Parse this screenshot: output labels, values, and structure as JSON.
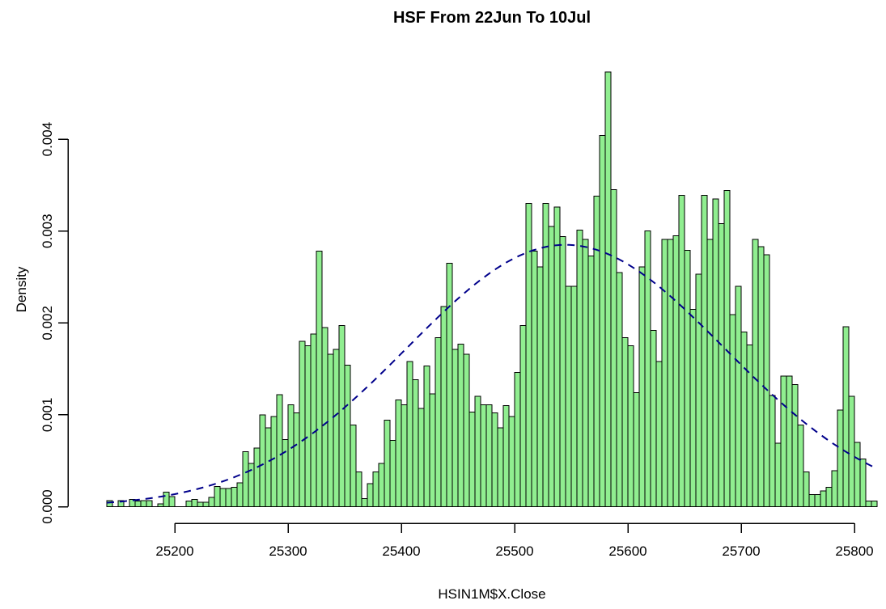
{
  "title": "HSF From 22Jun To 10Jul",
  "xlabel": "HSIN1M$X.Close",
  "ylabel": "Density",
  "axes": {
    "x_tick_labels": [
      "25200",
      "25300",
      "25400",
      "25500",
      "25600",
      "25700",
      "25800"
    ],
    "x_tick_values": [
      25200,
      25300,
      25400,
      25500,
      25600,
      25700,
      25800
    ],
    "y_tick_labels": [
      "0.000",
      "0.001",
      "0.002",
      "0.003",
      "0.004"
    ],
    "y_tick_values": [
      0,
      0.001,
      0.002,
      0.003,
      0.004
    ]
  },
  "colors": {
    "bar_fill": "#90EE90",
    "bar_stroke": "#000000",
    "curve": "#00008B",
    "axis": "#000000",
    "background": "#FFFFFF"
  },
  "chart_data": {
    "type": "bar",
    "subtype": "histogram-with-normal-curve",
    "title": "HSF From 22Jun To 10Jul",
    "xlabel": "HSIN1M$X.Close",
    "ylabel": "Density",
    "xlim": [
      25140,
      25825
    ],
    "ylim": [
      0,
      0.0047
    ],
    "grid": false,
    "legend": "none",
    "bin_width": 5,
    "first_bin_start": 25140,
    "densities": [
      6.5e-05,
      0,
      6.5e-05,
      0,
      8e-05,
      6e-05,
      6.5e-05,
      6.5e-05,
      0,
      3e-05,
      0.00016,
      0.00011,
      0,
      0,
      6e-05,
      8e-05,
      5e-05,
      5e-05,
      0.0001,
      0.00022,
      0.0002,
      0.0002,
      0.00021,
      0.00026,
      0.0006,
      0.00047,
      0.00064,
      0.001,
      0.00086,
      0.00098,
      0.00122,
      0.00073,
      0.00111,
      0.00102,
      0.0018,
      0.00175,
      0.00188,
      0.00278,
      0.00195,
      0.00166,
      0.00171,
      0.00197,
      0.00154,
      0.00089,
      0.00038,
      9e-05,
      0.00025,
      0.00038,
      0.00047,
      0.00094,
      0.00072,
      0.00116,
      0.00111,
      0.00158,
      0.00138,
      0.00107,
      0.00153,
      0.00123,
      0.00184,
      0.00218,
      0.00265,
      0.00171,
      0.00177,
      0.00166,
      0.00103,
      0.0012,
      0.00111,
      0.00111,
      0.00102,
      0.00086,
      0.0011,
      0.00098,
      0.00146,
      0.00197,
      0.0033,
      0.00278,
      0.00261,
      0.0033,
      0.00305,
      0.00326,
      0.00294,
      0.0024,
      0.0024,
      0.00301,
      0.00291,
      0.00273,
      0.00338,
      0.00404,
      0.00473,
      0.00345,
      0.00255,
      0.00184,
      0.00175,
      0.00124,
      0.00261,
      0.003,
      0.00192,
      0.00158,
      0.00291,
      0.00291,
      0.00295,
      0.00339,
      0.00279,
      0.00215,
      0.00253,
      0.00339,
      0.00291,
      0.00335,
      0.00308,
      0.00344,
      0.00209,
      0.0024,
      0.0019,
      0.00176,
      0.00291,
      0.00283,
      0.00274,
      0.00121,
      0.00069,
      0.00142,
      0.00142,
      0.00133,
      0.00089,
      0.00038,
      0.00013,
      0.00013,
      0.00017,
      0.00021,
      0.00039,
      0.00105,
      0.00196,
      0.0012,
      0.0007,
      0.00052,
      6e-05,
      6e-05
    ],
    "normal_curve": {
      "mean": 25545,
      "sd": 140,
      "peak_density": 0.00285,
      "line_style": "dashed",
      "color": "#00008B"
    }
  }
}
